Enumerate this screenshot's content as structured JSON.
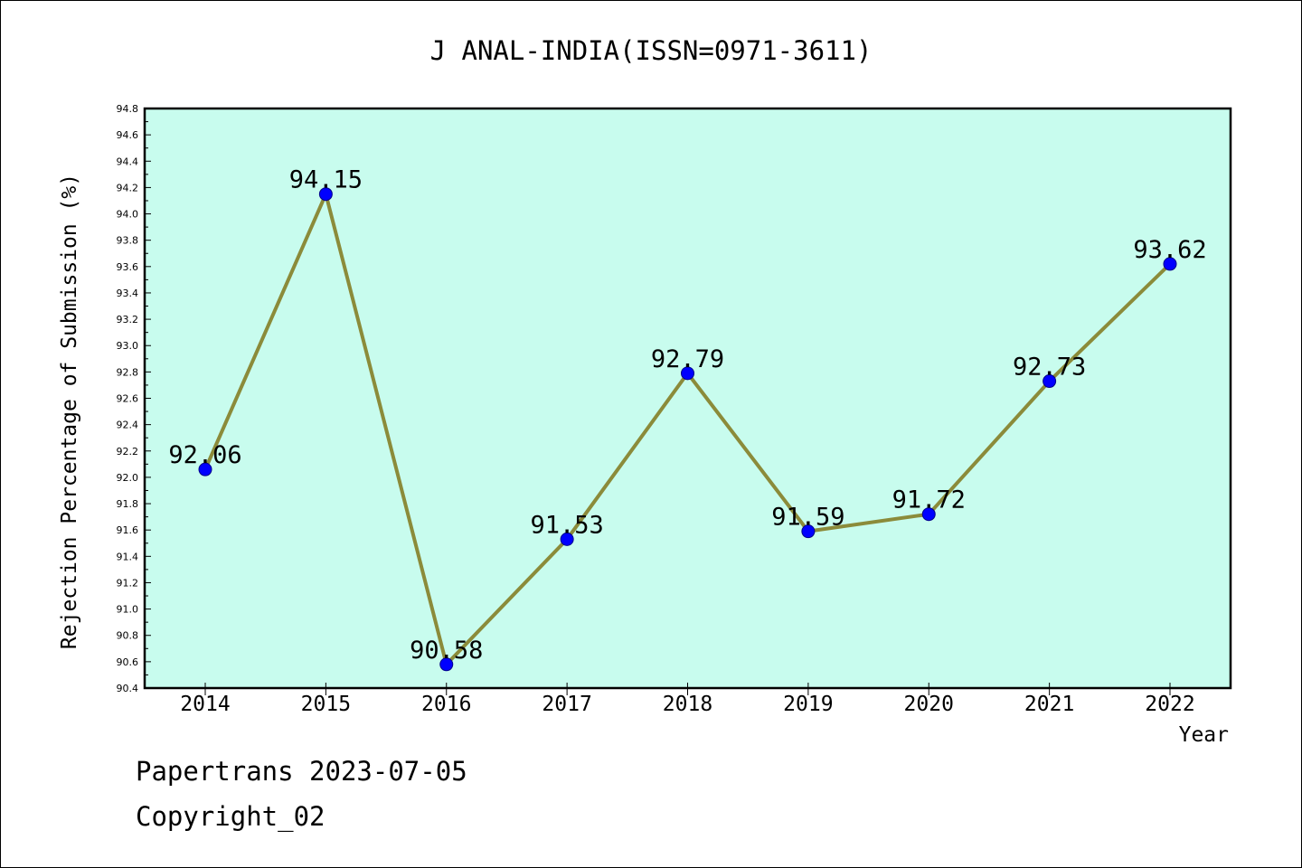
{
  "chart_data": {
    "type": "line",
    "title": "J ANAL-INDIA(ISSN=0971-3611)",
    "xlabel": "Year",
    "ylabel": "Rejection Percentage of Submission (%)",
    "categories": [
      "2014",
      "2015",
      "2016",
      "2017",
      "2018",
      "2019",
      "2020",
      "2021",
      "2022"
    ],
    "values": [
      92.06,
      94.15,
      90.58,
      91.53,
      92.79,
      91.59,
      91.72,
      92.73,
      93.62
    ],
    "data_labels": [
      "92.06",
      "94.15",
      "90.58",
      "91.53",
      "92.79",
      "91.59",
      "91.72",
      "92.73",
      "93.62"
    ],
    "ylim": [
      90.4,
      94.8
    ],
    "yticks": [
      "90.4",
      "90.6",
      "90.8",
      "91.0",
      "91.2",
      "91.4",
      "91.6",
      "91.8",
      "92.0",
      "92.2",
      "92.4",
      "92.6",
      "92.8",
      "93.0",
      "93.2",
      "93.4",
      "93.6",
      "93.8",
      "94.0",
      "94.2",
      "94.4",
      "94.6",
      "94.8"
    ],
    "grid": false,
    "colors": {
      "plot_background": "#c8fcee",
      "line": "#8b8b3a",
      "marker": "#0000ff"
    }
  },
  "footer": {
    "line1": "Papertrans 2023-07-05",
    "line2": "Copyright_02"
  }
}
